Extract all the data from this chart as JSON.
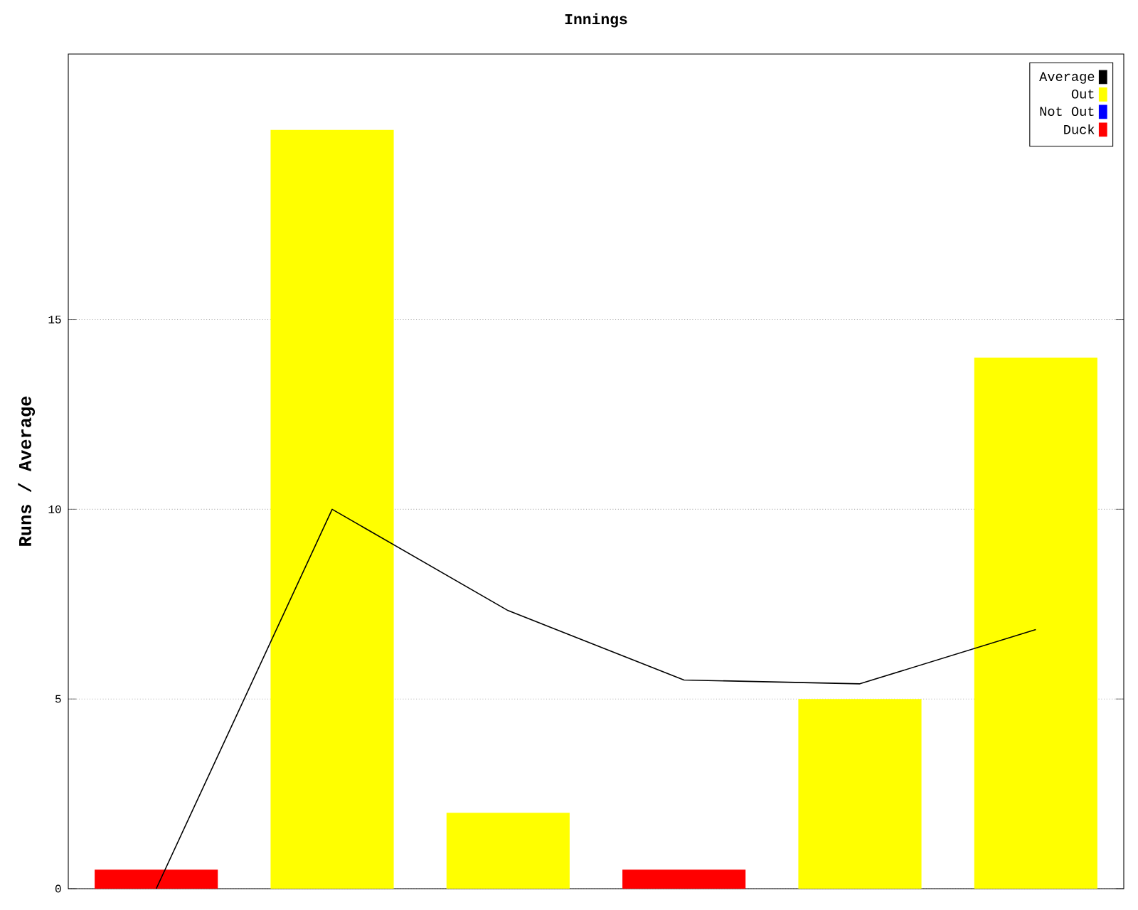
{
  "chart_data": {
    "type": "bar",
    "title": "Innings",
    "ylabel": "Runs / Average",
    "categories": [
      null,
      null,
      null,
      null,
      null,
      null
    ],
    "series": [
      {
        "name": "Average",
        "type": "line",
        "color": "#000000",
        "values": [
          0,
          10,
          7.33,
          5.5,
          5.4,
          6.83
        ]
      },
      {
        "name": "Out",
        "color": "#ffff00",
        "values": [
          null,
          20,
          2,
          null,
          5,
          14
        ]
      },
      {
        "name": "Not Out",
        "color": "#0000ff",
        "values": [
          null,
          null,
          null,
          null,
          null,
          null
        ]
      },
      {
        "name": "Duck",
        "color": "#ff0000",
        "values": [
          0.5,
          null,
          null,
          0.5,
          null,
          null
        ]
      }
    ],
    "stacked": true,
    "ylim": [
      0,
      22
    ],
    "yticks": [
      0,
      5,
      10,
      15
    ],
    "grid": "y",
    "legend": "top right",
    "tick_labels": "y",
    "marker": "none"
  }
}
